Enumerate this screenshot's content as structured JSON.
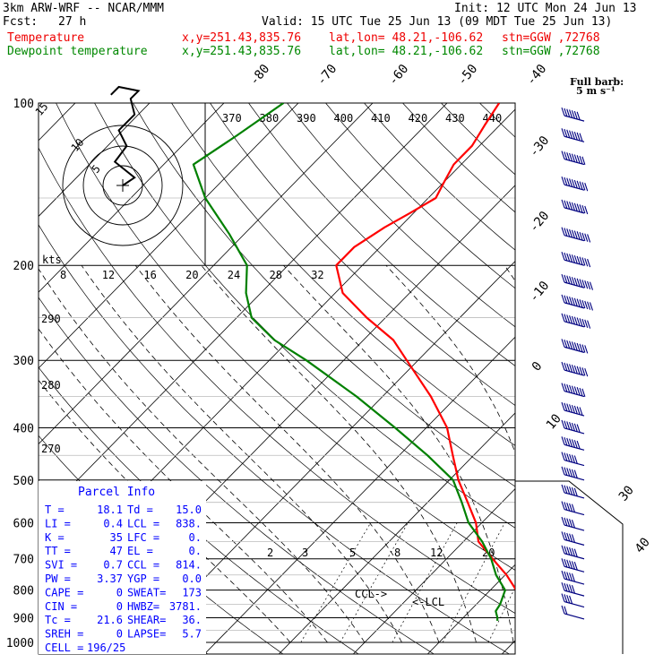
{
  "header": {
    "model": "3km ARW-WRF -- NCAR/MMM",
    "init": "Init: 12 UTC Mon 24 Jun 13",
    "fcst_label": "Fcst:",
    "fcst_value": "27 h",
    "valid": "Valid: 15 UTC Tue 25 Jun 13 (09 MDT Tue 25 Jun 13)",
    "temp_label": "Temperature",
    "dew_label": "Dewpoint temperature",
    "temp_xy": "x,y=251.43,835.76",
    "temp_latlon": "lat,lon= 48.21,-106.62",
    "temp_stn": "stn=GGW ,72768",
    "dew_xy": "x,y=251.43,835.76",
    "dew_latlon": "lat,lon= 48.21,-106.62",
    "dew_stn": "stn=GGW ,72768",
    "colors": {
      "temperature": "#ff0000",
      "dewpoint": "#008000"
    }
  },
  "barb_legend": {
    "line1": "Full barb:",
    "line2": "5 m s⁻¹"
  },
  "parcel_info": {
    "title": "Parcel Info",
    "rows": [
      [
        "T  =",
        "18.1",
        "Td =",
        "15.0"
      ],
      [
        "LI =",
        "0.4",
        "LCL =",
        "838."
      ],
      [
        "K  =",
        "35",
        "LFC =",
        "0."
      ],
      [
        "TT =",
        "47",
        "EL  =",
        "0."
      ],
      [
        "SVI =",
        "0.7",
        "CCL =",
        "814."
      ],
      [
        "PW =",
        "3.37",
        "YGP =",
        "0.0"
      ],
      [
        "CAPE =",
        "0",
        "SWEAT=",
        "173"
      ],
      [
        "CIN =",
        "0",
        "HWBZ=",
        "3781."
      ],
      [
        "Tc =",
        "21.6",
        "SHEAR=",
        "36."
      ],
      [
        "SREH =",
        "0",
        "LAPSE=",
        "5.7"
      ],
      [
        "CELL =",
        "196/25",
        "",
        ""
      ]
    ]
  },
  "chart_data": {
    "type": "line",
    "title": "",
    "yscale": "log-pressure",
    "ylim": [
      1000,
      100
    ],
    "pressure_labels": [
      "100",
      "200",
      "300",
      "400",
      "500",
      "600",
      "700",
      "800",
      "900",
      "1000"
    ],
    "isotherm_labels": [
      "-80",
      "-70",
      "-60",
      "-50",
      "-40",
      "-30",
      "-20",
      "-10",
      "0",
      "10",
      "20",
      "30",
      "40"
    ],
    "theta_labels_top": [
      "370",
      "380",
      "390",
      "400",
      "410",
      "420",
      "430",
      "440"
    ],
    "theta_labels_left": [
      "290",
      "280",
      "270"
    ],
    "mixing_ratio_labels": [
      "2",
      "3",
      "5",
      "8",
      "12",
      "20"
    ],
    "hodo_speed_labels": [
      "8",
      "12",
      "16",
      "20",
      "24",
      "28",
      "32"
    ],
    "hodo_ring_labels": [
      "5",
      "10",
      "15"
    ],
    "hodo_units": "kts",
    "annotations": [
      "CCL",
      "LCL"
    ],
    "series": [
      {
        "name": "Temperature",
        "points": [
          [
            912,
            21.6
          ],
          [
            900,
            20.4
          ],
          [
            875,
            18.4
          ],
          [
            850,
            16.6
          ],
          [
            830,
            15.6
          ],
          [
            800,
            13.5
          ],
          [
            750,
            10.2
          ],
          [
            700,
            6.2
          ],
          [
            650,
            2.0
          ],
          [
            600,
            -0.8
          ],
          [
            550,
            -4.6
          ],
          [
            500,
            -8.8
          ],
          [
            450,
            -12.8
          ],
          [
            400,
            -17.2
          ],
          [
            350,
            -23.5
          ],
          [
            300,
            -31.5
          ],
          [
            275,
            -36.0
          ],
          [
            250,
            -42.5
          ],
          [
            225,
            -49.0
          ],
          [
            200,
            -53.5
          ],
          [
            185,
            -53.5
          ],
          [
            170,
            -52.0
          ],
          [
            160,
            -50.5
          ],
          [
            150,
            -49.0
          ],
          [
            140,
            -50.0
          ],
          [
            130,
            -51.0
          ],
          [
            120,
            -51.0
          ],
          [
            110,
            -52.0
          ],
          [
            100,
            -53.0
          ]
        ]
      },
      {
        "name": "Dewpoint temperature",
        "points": [
          [
            912,
            15.0
          ],
          [
            900,
            14.6
          ],
          [
            875,
            13.5
          ],
          [
            850,
            13.2
          ],
          [
            800,
            12.0
          ],
          [
            750,
            8.8
          ],
          [
            700,
            6.0
          ],
          [
            650,
            2.5
          ],
          [
            600,
            -1.8
          ],
          [
            550,
            -5.4
          ],
          [
            500,
            -9.5
          ],
          [
            450,
            -16.2
          ],
          [
            400,
            -24.2
          ],
          [
            350,
            -33.5
          ],
          [
            300,
            -45.0
          ],
          [
            275,
            -52.0
          ],
          [
            250,
            -58.0
          ],
          [
            225,
            -62.0
          ],
          [
            200,
            -65.5
          ],
          [
            175,
            -72.0
          ],
          [
            150,
            -80.0
          ],
          [
            130,
            -86.0
          ],
          [
            115,
            -84.0
          ],
          [
            100,
            -82.0
          ]
        ]
      }
    ],
    "wind_barbs": [
      [
        905,
        5,
        2
      ],
      [
        860,
        10,
        4
      ],
      [
        820,
        12,
        5
      ],
      [
        780,
        12,
        5
      ],
      [
        740,
        14,
        6
      ],
      [
        700,
        14,
        6
      ],
      [
        660,
        15,
        5
      ],
      [
        620,
        16,
        5
      ],
      [
        580,
        17,
        5
      ],
      [
        540,
        18,
        6
      ],
      [
        500,
        17,
        6
      ],
      [
        470,
        16,
        6
      ],
      [
        440,
        17,
        7
      ],
      [
        410,
        18,
        7
      ],
      [
        380,
        18,
        8
      ],
      [
        350,
        19,
        9
      ],
      [
        320,
        19,
        10
      ],
      [
        290,
        20,
        10
      ],
      [
        260,
        21,
        11
      ],
      [
        240,
        21,
        12
      ],
      [
        220,
        21,
        12
      ],
      [
        200,
        21,
        11
      ],
      [
        180,
        21,
        11
      ],
      [
        160,
        20,
        10
      ],
      [
        145,
        20,
        10
      ],
      [
        130,
        19,
        9
      ],
      [
        118,
        18,
        8
      ],
      [
        108,
        18,
        7
      ]
    ],
    "hodograph": [
      [
        0,
        0
      ],
      [
        3,
        -2
      ],
      [
        -2,
        -6
      ],
      [
        1,
        -10
      ],
      [
        -1,
        -14
      ],
      [
        3,
        -18
      ],
      [
        2,
        -22
      ],
      [
        4,
        -24
      ],
      [
        -1,
        -25
      ],
      [
        -3,
        -23
      ]
    ]
  }
}
